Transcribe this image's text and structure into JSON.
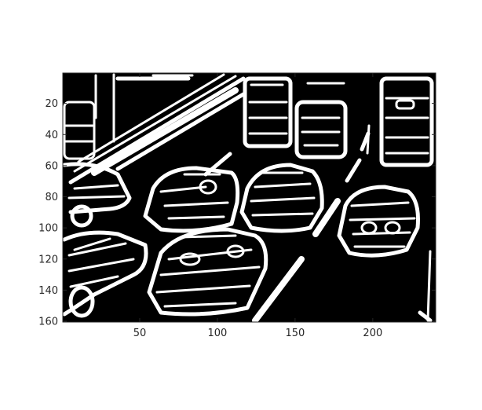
{
  "figure": {
    "description_hidden": "",
    "x_ticks": [
      "50",
      "100",
      "150",
      "200"
    ],
    "y_ticks": [
      "20",
      "40",
      "60",
      "80",
      "100",
      "120",
      "140",
      "160"
    ],
    "x_range": [
      1,
      240
    ],
    "y_range": [
      1,
      160
    ],
    "image_background": "#000000",
    "edge_color": "#ffffff",
    "axes_color": "#262626"
  }
}
